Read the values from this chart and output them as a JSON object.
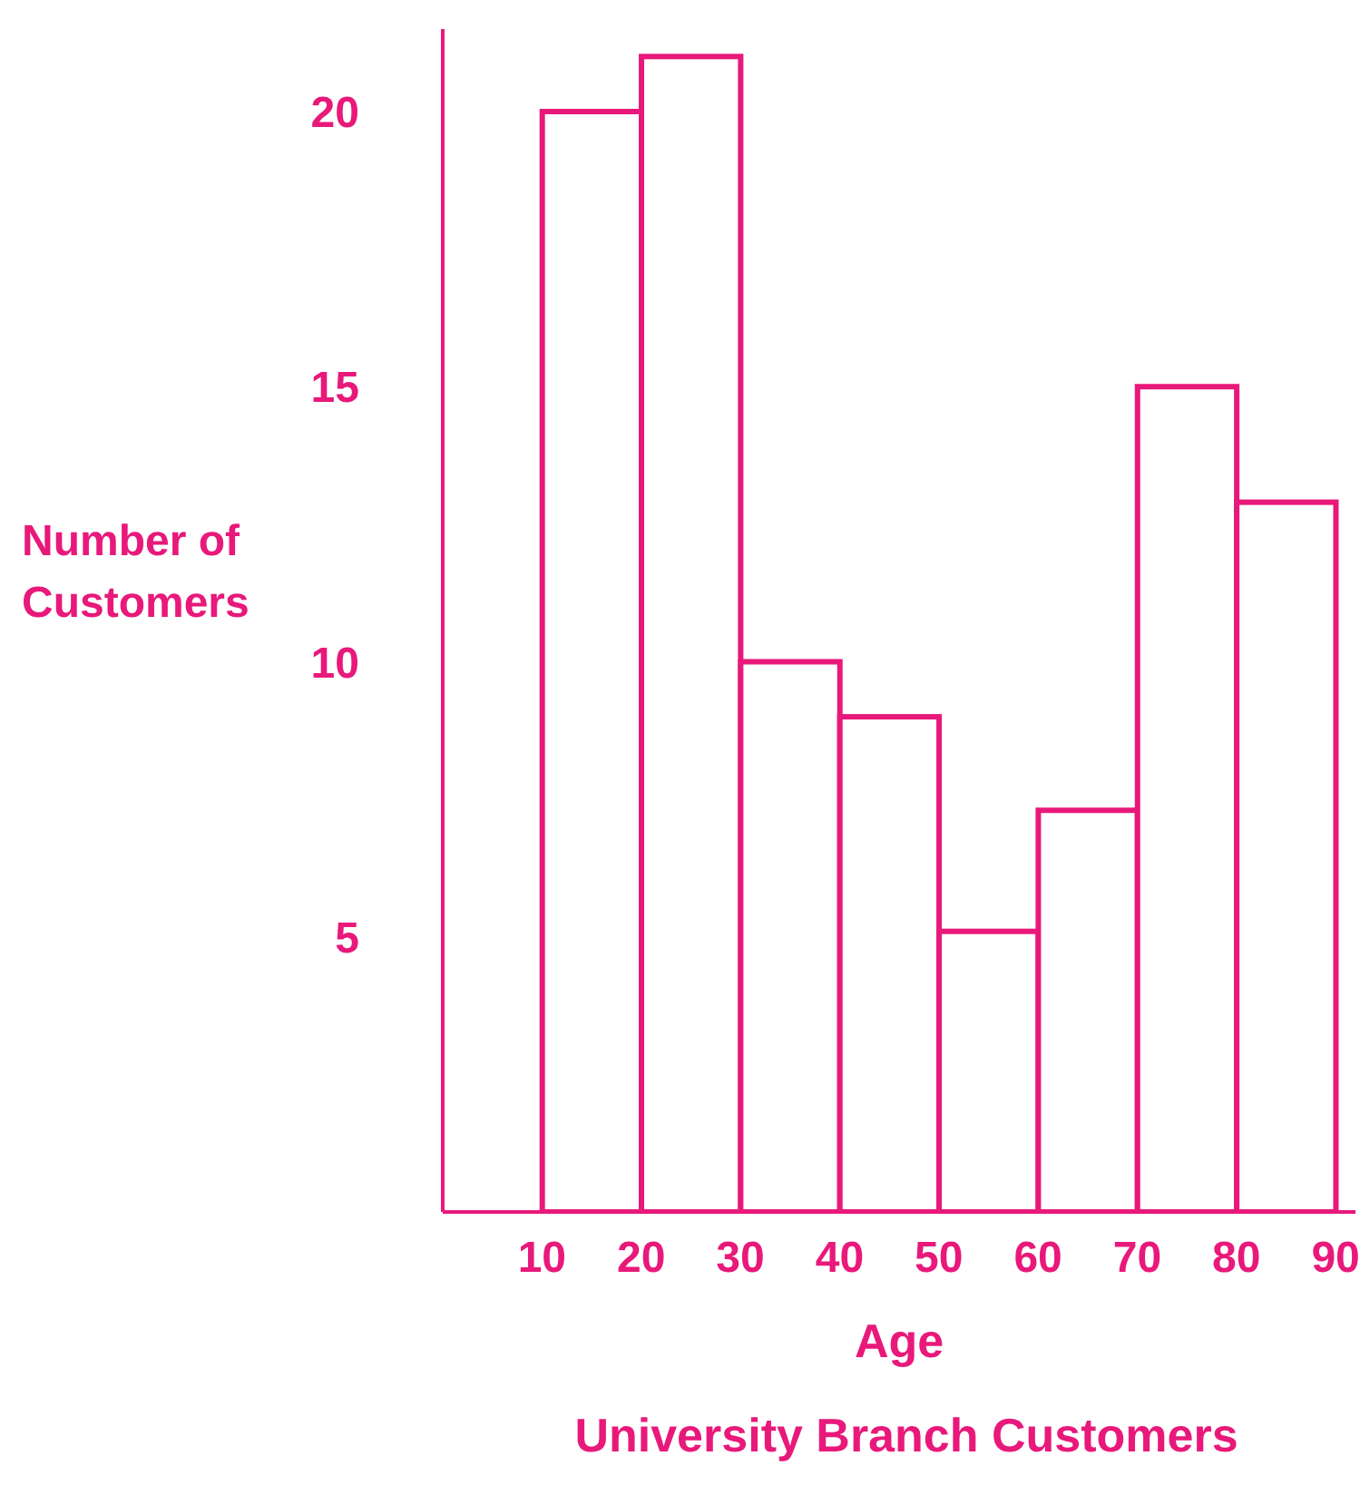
{
  "chart_data": {
    "type": "histogram",
    "title": "University Branch Customers",
    "xlabel": "Age",
    "ylabel": "Number of Customers",
    "bins": [
      10,
      20,
      30,
      40,
      50,
      60,
      70,
      80,
      90
    ],
    "values": [
      20,
      21,
      10,
      9,
      5.1,
      7.3,
      15,
      12.9
    ],
    "color": "#e8197a",
    "xlim": [
      0,
      92
    ],
    "xticks": [
      10,
      20,
      30,
      40,
      50,
      60,
      70,
      80,
      90
    ],
    "ylim": [
      0,
      21.5
    ],
    "yticks": [
      5,
      10,
      15,
      20
    ],
    "grid": false
  }
}
